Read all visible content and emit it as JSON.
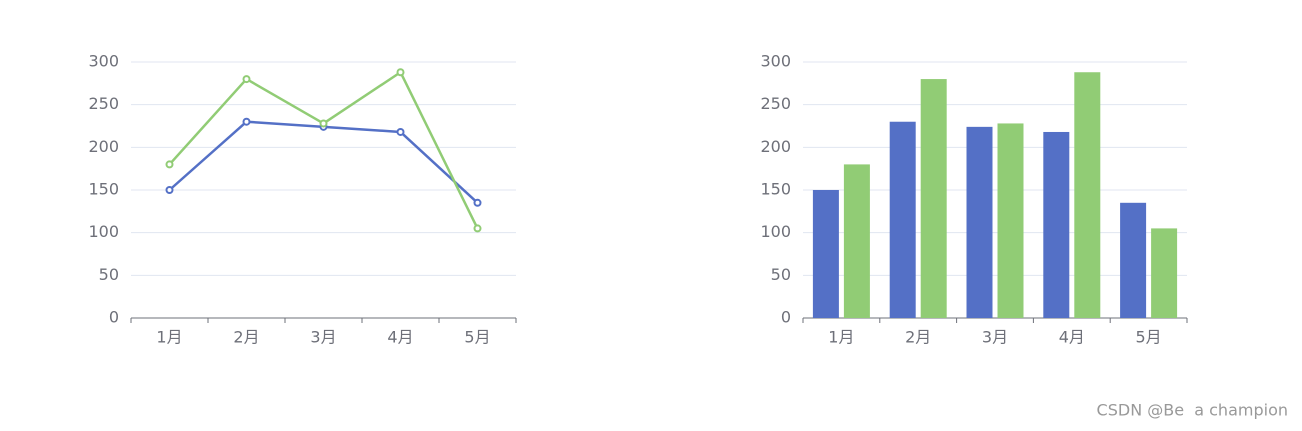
{
  "chart_data": [
    {
      "type": "line",
      "categories": [
        "1月",
        "2月",
        "3月",
        "4月",
        "5月"
      ],
      "series": [
        {
          "color": "#5470c6",
          "values": [
            150,
            230,
            224,
            218,
            135
          ]
        },
        {
          "color": "#91cc75",
          "values": [
            180,
            280,
            228,
            288,
            105
          ]
        }
      ],
      "ylim": [
        0,
        300
      ],
      "yticks": [
        0,
        50,
        100,
        150,
        200,
        250,
        300
      ],
      "grid": true
    },
    {
      "type": "bar",
      "categories": [
        "1月",
        "2月",
        "3月",
        "4月",
        "5月"
      ],
      "series": [
        {
          "color": "#5470c6",
          "values": [
            150,
            230,
            224,
            218,
            135
          ]
        },
        {
          "color": "#91cc75",
          "values": [
            180,
            280,
            228,
            288,
            105
          ]
        }
      ],
      "ylim": [
        0,
        300
      ],
      "yticks": [
        0,
        50,
        100,
        150,
        200,
        250,
        300
      ],
      "grid": true
    }
  ],
  "watermark": "CSDN @Be  a champion"
}
